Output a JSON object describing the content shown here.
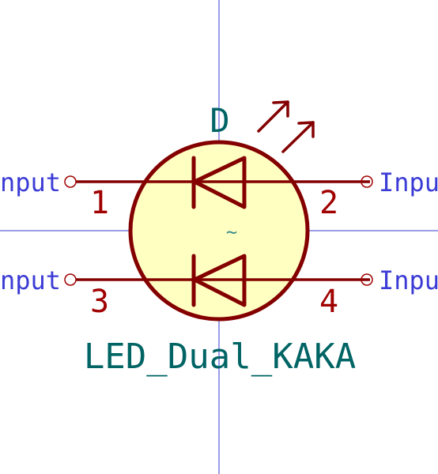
{
  "symbol": {
    "reference": "D",
    "value": "LED_Dual_KAKA",
    "footprint_marker": "~"
  },
  "pins": [
    {
      "number": "1",
      "type_label": "Input"
    },
    {
      "number": "2",
      "type_label": "Input"
    },
    {
      "number": "3",
      "type_label": "Input"
    },
    {
      "number": "4",
      "type_label": "Input"
    }
  ],
  "colors": {
    "background": "#ffffff",
    "axis": "#3b3bd6",
    "body_outline": "#840000",
    "body_fill": "#ffffc2",
    "pin_line": "#840000",
    "pin_number": "#a00000",
    "pin_type": "#3b3bd6",
    "field_text": "#006464"
  },
  "icons": {
    "led": "led-diode-icon",
    "emission": "light-emission-arrows-icon"
  }
}
